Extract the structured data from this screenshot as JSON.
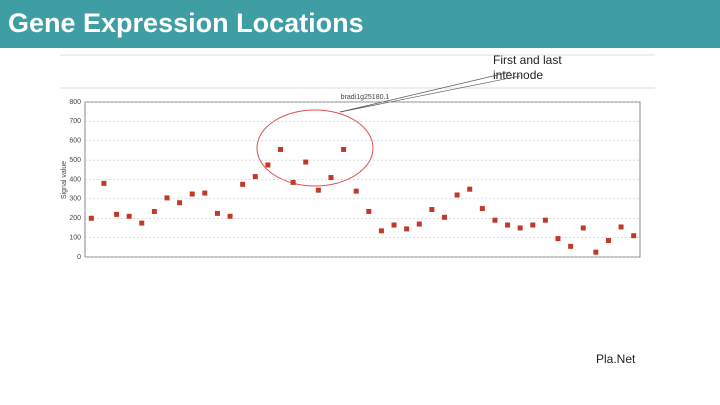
{
  "header": {
    "title": "Gene Expression Locations"
  },
  "annotation": "First and last internode",
  "footer": "Pla.Net",
  "chart_data": {
    "type": "scatter",
    "title": "bradi1g25180.1",
    "y_label": "Signal value",
    "categories": [
      null,
      null,
      null,
      null,
      null,
      null,
      null,
      null,
      null,
      null,
      null,
      null,
      null,
      null,
      null,
      null,
      null,
      null,
      null,
      null,
      null,
      null,
      null,
      null,
      null,
      null,
      null,
      null,
      null,
      null,
      null,
      null,
      null,
      null,
      null,
      null,
      null,
      null,
      null,
      null,
      null,
      null,
      null,
      null
    ],
    "values": [
      200,
      380,
      220,
      210,
      175,
      235,
      305,
      280,
      325,
      330,
      225,
      210,
      375,
      415,
      475,
      555,
      385,
      490,
      345,
      410,
      555,
      340,
      235,
      135,
      165,
      145,
      170,
      245,
      205,
      320,
      350,
      250,
      190,
      165,
      150,
      165,
      190,
      95,
      55,
      150,
      25,
      85,
      155,
      110
    ],
    "color": "#c0392b",
    "ylim": [
      0,
      800
    ],
    "yticks": [
      0,
      100,
      200,
      300,
      400,
      500,
      600,
      700,
      800
    ],
    "grid": true
  }
}
